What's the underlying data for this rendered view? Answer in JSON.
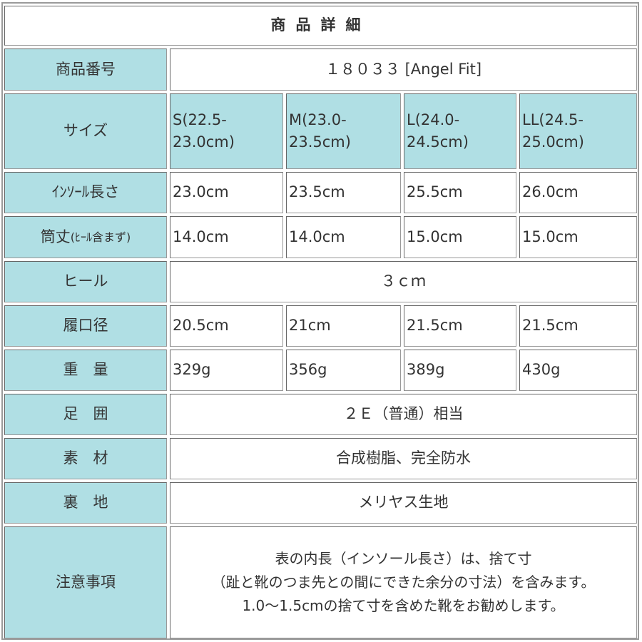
{
  "title": "商品詳細",
  "rows": {
    "product_no": {
      "label": "商品番号",
      "value": "１８０３３ [Angel Fit]"
    },
    "size": {
      "label": "サイズ",
      "values": [
        "S(22.5-23.0cm)",
        "M(23.0-23.5cm)",
        "L(24.0-24.5cm)",
        "LL(24.5-25.0cm)"
      ]
    },
    "insole": {
      "label": "ｲﾝｿｰﾙ長さ",
      "values": [
        "23.0cm",
        "23.5cm",
        "25.5cm",
        "26.0cm"
      ]
    },
    "shaft": {
      "label": "筒丈",
      "label_note": "(ﾋｰﾙ含まず)",
      "values": [
        "14.0cm",
        "14.0cm",
        "15.0cm",
        "15.0cm"
      ]
    },
    "heel": {
      "label": "ヒール",
      "value": "３ｃｍ"
    },
    "opening": {
      "label": "履口径",
      "values": [
        "20.5cm",
        "21cm",
        "21.5cm",
        "21.5cm"
      ]
    },
    "weight": {
      "label": "重　量",
      "values": [
        "329g",
        "356g",
        "389g",
        "430g"
      ]
    },
    "width": {
      "label": "足　囲",
      "value": "２Ｅ（普通）相当"
    },
    "material": {
      "label": "素　材",
      "value": "合成樹脂、完全防水"
    },
    "lining": {
      "label": "裏　地",
      "value": "メリヤス生地"
    },
    "notes": {
      "label": "注意事項",
      "lines": [
        "表の内長（インソール長さ）は、捨て寸",
        "（趾と靴のつま先との間にできた余分の寸法）を含みます。",
        "1.0～1.5cmの捨て寸を含めた靴をお勧めします。"
      ]
    }
  },
  "colors": {
    "label_bg": "#b0dfe4",
    "border": "#666666"
  }
}
